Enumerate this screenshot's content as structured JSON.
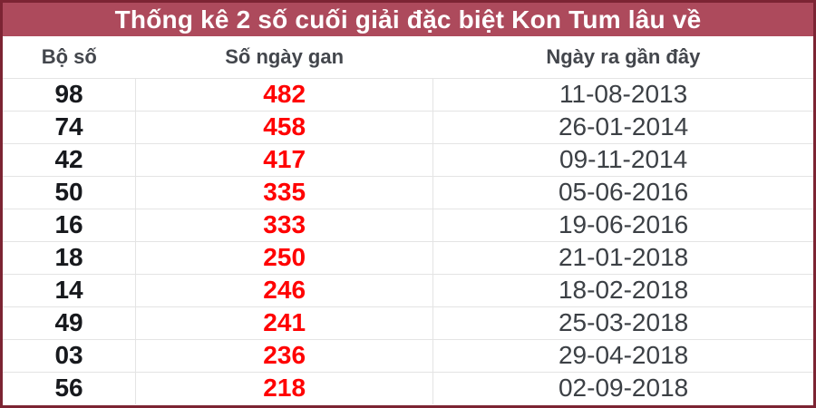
{
  "title": "Thống kê 2 số cuối giải đặc biệt Kon Tum lâu về",
  "chart_data": {
    "type": "table",
    "title": "Thống kê 2 số cuối giải đặc biệt Kon Tum lâu về",
    "columns": [
      "Bộ số",
      "Số ngày gan",
      "Ngày ra gần đây"
    ],
    "rows": [
      {
        "pair": "98",
        "gan_days": "482",
        "last_date": "11-08-2013"
      },
      {
        "pair": "74",
        "gan_days": "458",
        "last_date": "26-01-2014"
      },
      {
        "pair": "42",
        "gan_days": "417",
        "last_date": "09-11-2014"
      },
      {
        "pair": "50",
        "gan_days": "335",
        "last_date": "05-06-2016"
      },
      {
        "pair": "16",
        "gan_days": "333",
        "last_date": "19-06-2016"
      },
      {
        "pair": "18",
        "gan_days": "250",
        "last_date": "21-01-2018"
      },
      {
        "pair": "14",
        "gan_days": "246",
        "last_date": "18-02-2018"
      },
      {
        "pair": "49",
        "gan_days": "241",
        "last_date": "25-03-2018"
      },
      {
        "pair": "03",
        "gan_days": "236",
        "last_date": "29-04-2018"
      },
      {
        "pair": "56",
        "gan_days": "218",
        "last_date": "02-09-2018"
      }
    ]
  },
  "colors": {
    "frame_border": "#7c2433",
    "title_bar_bg": "#ad4a5c",
    "title_text": "#ffffff",
    "header_text": "#43464c",
    "pair_text": "#17191d",
    "gan_days_text": "#ff0000",
    "date_text": "#3c4045",
    "row_divider": "#e4e4e4",
    "row_bg": "#ffffff"
  }
}
